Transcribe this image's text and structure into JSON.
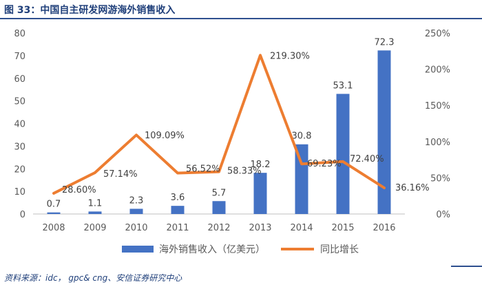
{
  "figure": {
    "title": "图 33：中国自主研发网游海外销售收入",
    "source": "资料来源：idc， gpc& cng、安信证券研究中心"
  },
  "chart_data": {
    "type": "bar",
    "title": "中国自主研发网游海外销售收入",
    "categories": [
      "2008",
      "2009",
      "2010",
      "2011",
      "2012",
      "2013",
      "2014",
      "2015",
      "2016"
    ],
    "series": [
      {
        "name": "海外销售收入（亿美元）",
        "type": "bar",
        "axis": "left",
        "color": "#4472c4",
        "values": [
          0.7,
          1.1,
          2.3,
          3.6,
          5.7,
          18.2,
          30.8,
          53.1,
          72.3
        ],
        "labels": [
          "0.7",
          "1.1",
          "2.3",
          "3.6",
          "5.7",
          "18.2",
          "30.8",
          "53.1",
          "72.3"
        ]
      },
      {
        "name": "同比增长",
        "type": "line",
        "axis": "right",
        "color": "#ed7d31",
        "values": [
          28.6,
          57.14,
          109.09,
          56.52,
          58.33,
          219.3,
          69.23,
          72.4,
          36.16
        ],
        "labels": [
          "28.60%",
          "57.14%",
          "109.09%",
          "56.52%",
          "58.33%",
          "219.30%",
          "69.23%",
          "72.40%",
          "36.16%"
        ]
      }
    ],
    "y_left": {
      "min": 0,
      "max": 80,
      "ticks": [
        "0",
        "10",
        "20",
        "30",
        "40",
        "50",
        "60",
        "70",
        "80"
      ]
    },
    "y_right": {
      "min": 0,
      "max": 250,
      "ticks": [
        "0%",
        "50%",
        "100%",
        "150%",
        "200%",
        "250%"
      ]
    },
    "legend_position": "bottom",
    "grid": false
  }
}
